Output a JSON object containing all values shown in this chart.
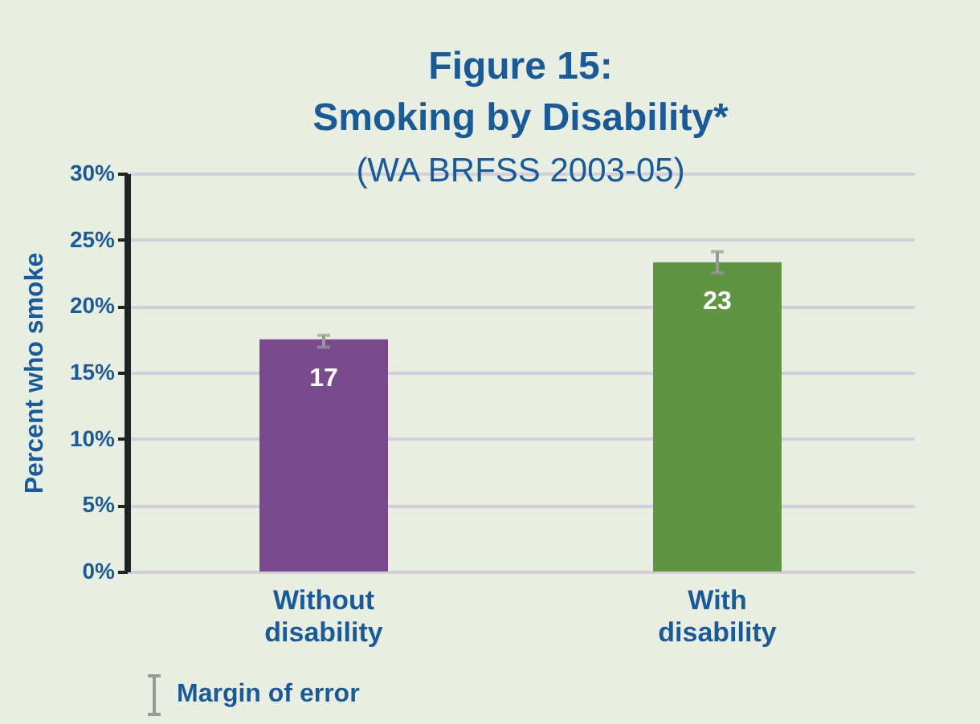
{
  "chart_data": {
    "type": "bar",
    "title": "Figure 15: Smoking by Disability*",
    "subtitle": "(WA BRFSS 2003-05)",
    "ylabel": "Percent who smoke",
    "categories": [
      "Without disability",
      "With disability"
    ],
    "values": [
      17.5,
      23.3
    ],
    "colors": [
      "#7a4a8f",
      "#5f9445"
    ],
    "errors": [
      [
        16.9,
        17.8
      ],
      [
        22.5,
        24.1
      ]
    ],
    "value_labels": [
      "17",
      "23"
    ],
    "ylim": [
      0,
      30
    ],
    "yticks": [
      {
        "value": 0,
        "label": "0%"
      },
      {
        "value": 5,
        "label": "5%"
      },
      {
        "value": 10,
        "label": "10%"
      },
      {
        "value": 15,
        "label": "15%"
      },
      {
        "value": 20,
        "label": "20%"
      },
      {
        "value": 25,
        "label": "25%"
      },
      {
        "value": 30,
        "label": "30%"
      }
    ],
    "grid": "y",
    "annotations": [
      "Margin of error"
    ]
  }
}
